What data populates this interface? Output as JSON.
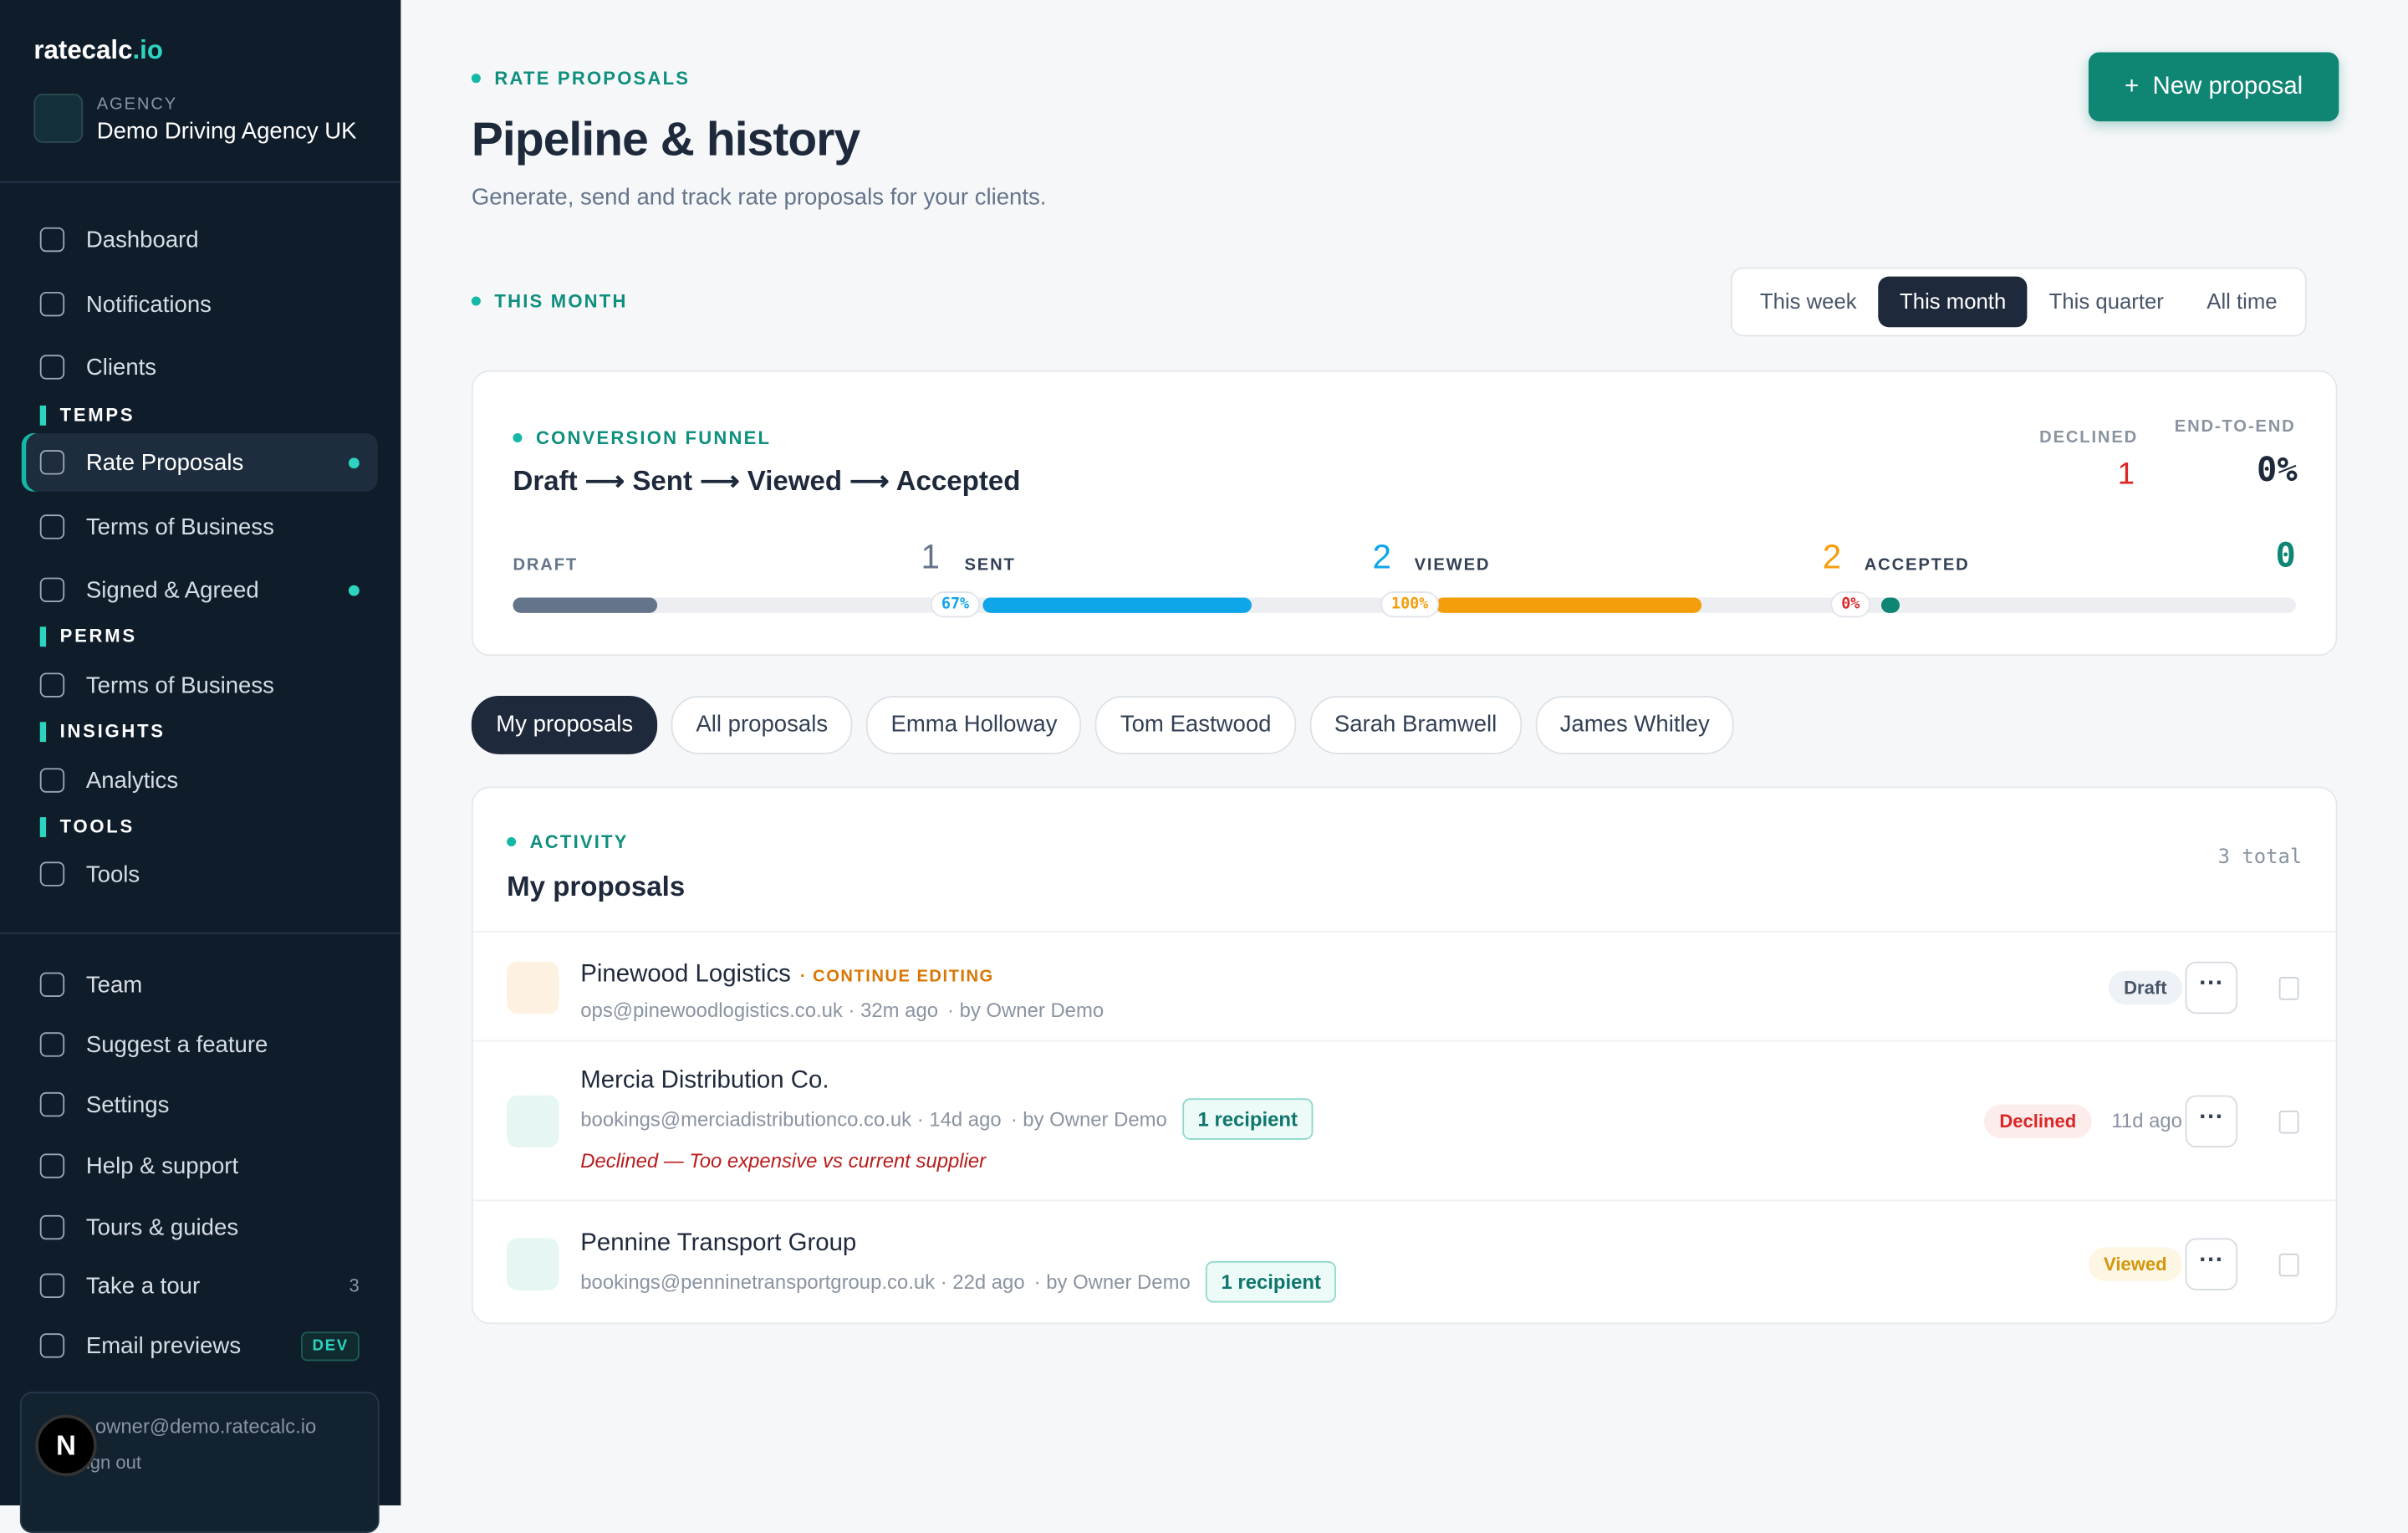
{
  "brand": {
    "name": "ratecalc",
    "tld": ".io"
  },
  "agency": {
    "label": "AGENCY",
    "name": "Demo Driving Agency UK"
  },
  "sidebar": {
    "top_items": [
      "Dashboard",
      "Notifications",
      "Clients"
    ],
    "sections": [
      {
        "title": "TEMPS",
        "items": [
          {
            "label": "Rate Proposals",
            "active": true,
            "dot": true
          },
          {
            "label": "Terms of Business"
          },
          {
            "label": "Signed & Agreed",
            "dot": true
          }
        ]
      },
      {
        "title": "PERMS",
        "items": [
          {
            "label": "Terms of Business"
          }
        ]
      },
      {
        "title": "INSIGHTS",
        "items": [
          {
            "label": "Analytics"
          }
        ]
      },
      {
        "title": "TOOLS",
        "items": [
          {
            "label": "Tools"
          }
        ]
      }
    ],
    "bottom_items": [
      {
        "label": "Team"
      },
      {
        "label": "Suggest a feature"
      },
      {
        "label": "Settings"
      },
      {
        "label": "Help & support"
      },
      {
        "label": "Tours & guides"
      },
      {
        "label": "Take a tour",
        "badge": "3"
      },
      {
        "label": "Email previews",
        "tag": "DEV"
      }
    ],
    "user": {
      "email": "owner@demo.ratecalc.io",
      "action": "Sign out",
      "avatar": "N"
    }
  },
  "header": {
    "eyebrow": "RATE PROPOSALS",
    "title": "Pipeline & history",
    "subtitle": "Generate, send and track rate proposals for your clients.",
    "button": "New proposal"
  },
  "period": {
    "label": "THIS MONTH",
    "tabs": [
      "This week",
      "This month",
      "This quarter",
      "All time"
    ],
    "active": 1
  },
  "funnel": {
    "eyebrow": "CONVERSION FUNNEL",
    "title": "Draft ⟶ Sent ⟶ Viewed ⟶ Accepted",
    "declined_label": "DECLINED",
    "declined": 1,
    "end_label": "END-TO-END",
    "end_value": "0%",
    "stages": [
      {
        "label": "DRAFT",
        "count": 1
      },
      {
        "label": "SENT",
        "count": 2,
        "rate": "67%"
      },
      {
        "label": "VIEWED",
        "count": 2,
        "rate": "100%"
      },
      {
        "label": "ACCEPTED",
        "count": 0,
        "rate": "0%"
      }
    ]
  },
  "filters": {
    "items": [
      "My proposals",
      "All proposals",
      "Emma Holloway",
      "Tom Eastwood",
      "Sarah Bramwell",
      "James Whitley"
    ],
    "active": 0
  },
  "activity": {
    "eyebrow": "ACTIVITY",
    "title": "My proposals",
    "total": "3 total",
    "rows": [
      {
        "name": "Pinewood Logistics",
        "tag": "· CONTINUE EDITING",
        "meta": "ops@pinewoodlogistics.co.uk · 32m ago",
        "by": "· by Owner Demo",
        "status": "Draft"
      },
      {
        "name": "Mercia Distribution Co.",
        "meta": "bookings@merciadistributionco.co.uk · 14d ago",
        "by": "· by Owner Demo",
        "recipients": "1 recipient",
        "note": "Declined — Too expensive vs current supplier",
        "status": "Declined",
        "when": "11d ago"
      },
      {
        "name": "Pennine Transport Group",
        "meta": "bookings@penninetransportgroup.co.uk · 22d ago",
        "by": "· by Owner Demo",
        "recipients": "1 recipient",
        "status": "Viewed"
      }
    ]
  }
}
